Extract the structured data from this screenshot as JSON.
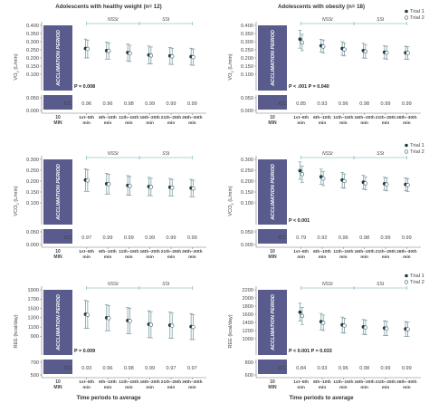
{
  "figure": {
    "x_axis_title": "Time periods to average",
    "column_titles": [
      "Adolescents with healthy weight (n= 12)",
      "Adolescents with obesity (n= 18)"
    ]
  },
  "chart_data": [
    {
      "type": "scatter",
      "panel": "A1",
      "group": "Adolescents with healthy weight (n= 12)",
      "ylabel_main": "VO",
      "ylabel_sub": "2",
      "ylabel_unit": " (L/min)",
      "yticks": [
        "0.400",
        "0.350",
        "0.300",
        "0.250",
        "0.200",
        "0.150",
        "0.100",
        "0.050",
        "0.000"
      ],
      "ylim": [
        0.0,
        0.4
      ],
      "baseline_label": [
        "10",
        "MIN"
      ],
      "acclimation_text": "ACCLIMATION PERIOD",
      "categories": [
        [
          "1st–5th",
          "min"
        ],
        [
          "6th–10th",
          "min"
        ],
        [
          "11th–15th",
          "min"
        ],
        [
          "16th–20th",
          "min"
        ],
        [
          "21th–25th",
          "min"
        ],
        [
          "26th–30th",
          "min"
        ]
      ],
      "series": [
        {
          "name": "Trial 1",
          "means": [
            0.258,
            0.245,
            0.233,
            0.218,
            0.213,
            0.208
          ],
          "sd": [
            0.058,
            0.052,
            0.052,
            0.055,
            0.052,
            0.052
          ]
        },
        {
          "name": "Trial 2",
          "means": [
            0.255,
            0.243,
            0.228,
            0.215,
            0.21,
            0.205
          ],
          "sd": [
            0.055,
            0.05,
            0.05,
            0.052,
            0.05,
            0.05
          ]
        }
      ],
      "bracket": {
        "nssi": "NSSt",
        "ssi": "SSt",
        "start": 0,
        "split": 2.5,
        "end": 5
      },
      "pvalues": "P = 0.008",
      "icc_label": "ICC",
      "icc": [
        "0.96",
        "0.96",
        "0.98",
        "0.99",
        "0.99",
        "0.99"
      ],
      "legend": null
    },
    {
      "type": "scatter",
      "panel": "A2",
      "group": "Adolescents with obesity (n= 18)",
      "ylabel_main": "VO",
      "ylabel_sub": "2",
      "ylabel_unit": " (L/min)",
      "yticks": [
        "0.400",
        "0.350",
        "0.300",
        "0.250",
        "0.200",
        "0.150",
        "0.100",
        "0.050",
        "0.000"
      ],
      "ylim": [
        0.0,
        0.4
      ],
      "baseline_label": [
        "10",
        "MIN"
      ],
      "acclimation_text": "ACCLIMATION PERIOD",
      "categories": [
        [
          "1st–5th",
          "min"
        ],
        [
          "6th–10th",
          "min"
        ],
        [
          "11th–15th",
          "min"
        ],
        [
          "16th–20th",
          "min"
        ],
        [
          "21th–25th",
          "min"
        ],
        [
          "26th–30th",
          "min"
        ]
      ],
      "series": [
        {
          "name": "Trial 1",
          "means": [
            0.315,
            0.275,
            0.258,
            0.245,
            0.235,
            0.232
          ],
          "sd": [
            0.055,
            0.04,
            0.042,
            0.045,
            0.04,
            0.04
          ]
        },
        {
          "name": "Trial 2",
          "means": [
            0.295,
            0.27,
            0.252,
            0.24,
            0.232,
            0.23
          ],
          "sd": [
            0.05,
            0.04,
            0.04,
            0.042,
            0.04,
            0.038
          ]
        }
      ],
      "bracket": {
        "nssi": "NSSt",
        "ssi": "SSt",
        "start": 0,
        "split": 2.5,
        "end": 5
      },
      "pvalues": "P < .001   P = 0.040",
      "icc_label": "ICC",
      "icc": [
        "0.85",
        "0.93",
        "0.96",
        "0.98",
        "0.99",
        "0.99"
      ],
      "legend": [
        "Trial 1",
        "Trial 2"
      ]
    },
    {
      "type": "scatter",
      "panel": "B1",
      "group": "Adolescents with healthy weight (n= 12)",
      "ylabel_main": "VCO",
      "ylabel_sub": "2",
      "ylabel_unit": " (L/min)",
      "yticks": [
        "0.300",
        "0.250",
        "0.200",
        "0.150",
        "0.100",
        "0.050",
        "0.000"
      ],
      "ylim": [
        0.0,
        0.3
      ],
      "baseline_label": [
        "10",
        "MIN"
      ],
      "acclimation_text": "ACCLIMATION PERIOD",
      "categories": [
        [
          "1st–5th",
          "min"
        ],
        [
          "6th–10th",
          "min"
        ],
        [
          "11th–15th",
          "min"
        ],
        [
          "16th–20th",
          "min"
        ],
        [
          "21th–25th",
          "min"
        ],
        [
          "26th–30th",
          "min"
        ]
      ],
      "series": [
        {
          "name": "Trial 1",
          "means": [
            0.205,
            0.188,
            0.18,
            0.175,
            0.172,
            0.168
          ],
          "sd": [
            0.052,
            0.048,
            0.045,
            0.042,
            0.04,
            0.04
          ]
        },
        {
          "name": "Trial 2",
          "means": [
            0.203,
            0.186,
            0.178,
            0.173,
            0.17,
            0.166
          ],
          "sd": [
            0.05,
            0.045,
            0.043,
            0.04,
            0.038,
            0.038
          ]
        }
      ],
      "bracket": {
        "nssi": "NSSt",
        "ssi": "SSt",
        "start": 0,
        "split": 2.5,
        "end": 5
      },
      "pvalues": "",
      "icc_label": "ICC",
      "icc": [
        "0.97",
        "0.99",
        "0.99",
        "0.99",
        "0.99",
        "0.99"
      ],
      "legend": null
    },
    {
      "type": "scatter",
      "panel": "B2",
      "group": "Adolescents with obesity (n= 18)",
      "ylabel_main": "VCO",
      "ylabel_sub": "2",
      "ylabel_unit": " (L/min)",
      "yticks": [
        "0.300",
        "0.250",
        "0.200",
        "0.150",
        "0.100",
        "0.050",
        "0.000"
      ],
      "ylim": [
        0.0,
        0.3
      ],
      "baseline_label": [
        "10",
        "MIN"
      ],
      "acclimation_text": "ACCLIMATION PERIOD",
      "categories": [
        [
          "1st–5th",
          "min"
        ],
        [
          "6th–10th",
          "min"
        ],
        [
          "11th–15th",
          "min"
        ],
        [
          "16th–20th",
          "min"
        ],
        [
          "21th–25th",
          "min"
        ],
        [
          "26th–30th",
          "min"
        ]
      ],
      "series": [
        {
          "name": "Trial 1",
          "means": [
            0.248,
            0.22,
            0.205,
            0.195,
            0.188,
            0.185
          ],
          "sd": [
            0.04,
            0.035,
            0.035,
            0.032,
            0.03,
            0.03
          ]
        },
        {
          "name": "Trial 2",
          "means": [
            0.232,
            0.212,
            0.2,
            0.19,
            0.185,
            0.182
          ],
          "sd": [
            0.038,
            0.033,
            0.033,
            0.03,
            0.03,
            0.03
          ]
        }
      ],
      "bracket": {
        "nssi": "NSSt",
        "ssi": "SSt",
        "start": 0,
        "split": 2.5,
        "end": 5
      },
      "pvalues": "P < 0.001",
      "icc_label": "ICC",
      "icc": [
        "0.79",
        "0.92",
        "0.96",
        "0.98",
        "0.99",
        "0.99"
      ],
      "legend": [
        "Trial 1",
        "Trial 2"
      ]
    },
    {
      "type": "scatter",
      "panel": "C1",
      "group": "Adolescents with healthy weight (n= 12)",
      "ylabel_main": "REE (kcal/day)",
      "ylabel_sub": "",
      "ylabel_unit": "",
      "yticks": [
        "1900",
        "1700",
        "1500",
        "1300",
        "1100",
        "900",
        "700",
        "500"
      ],
      "ylim": [
        500,
        1900
      ],
      "baseline_label": [
        "10",
        "MIN"
      ],
      "acclimation_text": "ACCLIMATION PERIOD",
      "categories": [
        [
          "1st–5th",
          "min"
        ],
        [
          "6th–10th",
          "min"
        ],
        [
          "11th–15th",
          "min"
        ],
        [
          "16th–20th",
          "min"
        ],
        [
          "21th–25th",
          "min"
        ],
        [
          "26th–30th",
          "min"
        ]
      ],
      "series": [
        {
          "name": "Trial 1",
          "means": [
            1375,
            1300,
            1240,
            1160,
            1140,
            1110
          ],
          "sd": [
            300,
            280,
            280,
            290,
            280,
            280
          ]
        },
        {
          "name": "Trial 2",
          "means": [
            1360,
            1290,
            1230,
            1150,
            1130,
            1100
          ],
          "sd": [
            290,
            270,
            270,
            280,
            270,
            270
          ]
        }
      ],
      "bracket": {
        "nssi": "NSSt",
        "ssi": "SSt",
        "start": 0,
        "split": 2.5,
        "end": 5
      },
      "pvalues": "P = 0.009",
      "icc_label": "ICC",
      "icc": [
        "0.93",
        "0.96",
        "0.98",
        "0.99",
        "0.97",
        "0.97"
      ],
      "legend": null
    },
    {
      "type": "scatter",
      "panel": "C2",
      "group": "Adolescents with obesity (n= 18)",
      "ylabel_main": "REE (kcal/day)",
      "ylabel_sub": "",
      "ylabel_unit": "",
      "yticks": [
        "2200",
        "2000",
        "1800",
        "1600",
        "1400",
        "1200",
        "1000",
        "800",
        "600"
      ],
      "ylim": [
        600,
        2200
      ],
      "baseline_label": [
        "10",
        "MIN"
      ],
      "acclimation_text": "ACCLIMATION PERIOD",
      "categories": [
        [
          "1st–5th",
          "min"
        ],
        [
          "6th–10th",
          "min"
        ],
        [
          "11th–15th",
          "min"
        ],
        [
          "16th–20th",
          "min"
        ],
        [
          "21th–25th",
          "min"
        ],
        [
          "26th–30th",
          "min"
        ]
      ],
      "series": [
        {
          "name": "Trial 1",
          "means": [
            1650,
            1420,
            1340,
            1290,
            1260,
            1240
          ],
          "sd": [
            220,
            200,
            190,
            180,
            180,
            180
          ]
        },
        {
          "name": "Trial 2",
          "means": [
            1560,
            1390,
            1320,
            1275,
            1250,
            1230
          ],
          "sd": [
            210,
            190,
            185,
            180,
            175,
            175
          ]
        }
      ],
      "bracket": {
        "nssi": "NSSt",
        "ssi": "SSt",
        "start": 0,
        "split": 2.5,
        "end": 5
      },
      "pvalues": "P < 0.001   P = 0.033",
      "icc_label": "ICC",
      "icc": [
        "0.84",
        "0.93",
        "0.96",
        "0.98",
        "0.99",
        "0.99"
      ],
      "legend": [
        "Trial 1",
        "Trial 2"
      ]
    }
  ]
}
